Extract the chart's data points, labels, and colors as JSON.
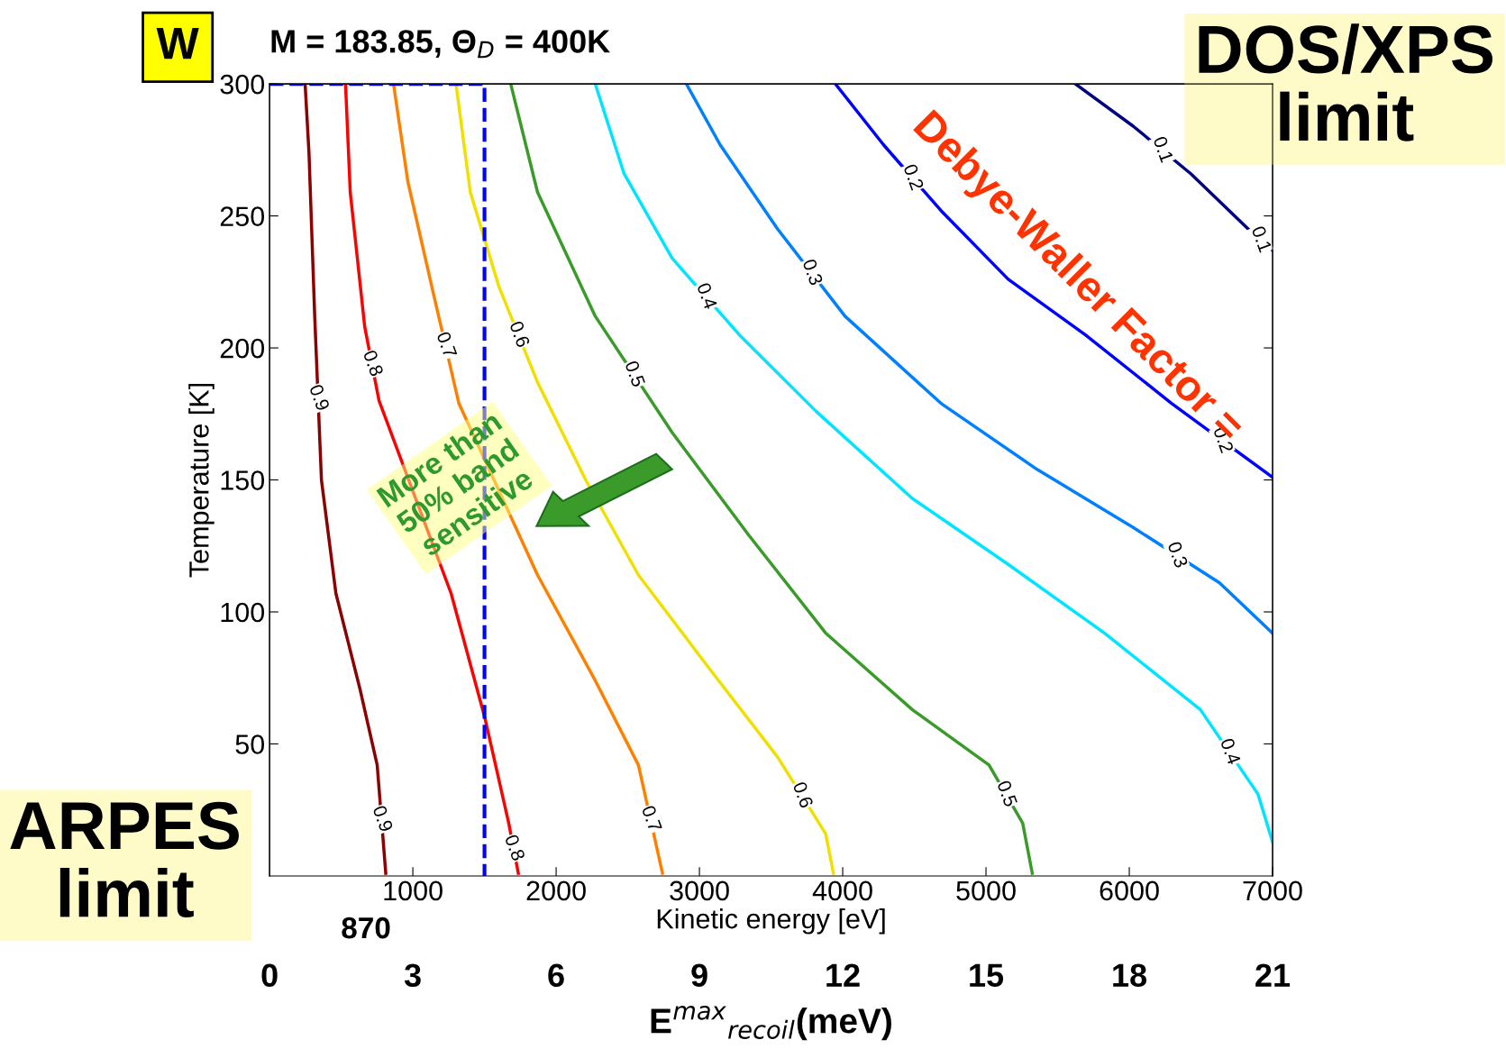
{
  "chart_data": {
    "type": "line",
    "title": "M = 183.85, Θ$_{D}$ = 400K",
    "xlabel": "Kinetic energy [eV]",
    "ylabel": "Temperature [K]",
    "x2label": "E$^{max}$$_{recoil}$(meV)",
    "xlim": [
      0,
      7000
    ],
    "xticks": [
      1000,
      2000,
      3000,
      4000,
      5000,
      6000,
      7000
    ],
    "ylim": [
      0,
      300
    ],
    "yticks": [
      50,
      100,
      150,
      200,
      250,
      300
    ],
    "x2lim": [
      0,
      21
    ],
    "x2ticks": [
      0,
      3,
      6,
      9,
      12,
      15,
      18,
      21
    ],
    "grid": false,
    "legend": false,
    "marker": "none",
    "series": [
      {
        "name": "0.9",
        "color": "#8b0000",
        "x": [
          248,
          275,
          315,
          362,
          463,
          630,
          751,
          811
        ],
        "values": [
          300,
          274,
          212,
          150,
          107,
          71,
          42,
          1
        ]
      },
      {
        "name": "0.8",
        "color": "#ff0000",
        "x": [
          530,
          563,
          664,
          764,
          1267,
          1502,
          1669,
          1736
        ],
        "values": [
          300,
          259,
          208,
          180,
          107,
          60,
          20,
          1
        ]
      },
      {
        "name": "0.7",
        "color": "#ff8000",
        "x": [
          865,
          965,
          1133,
          1321,
          1870,
          2273,
          2574,
          2742
        ],
        "values": [
          300,
          263,
          223,
          179,
          114,
          74,
          42,
          1
        ]
      },
      {
        "name": "0.6",
        "color": "#f0e000",
        "x": [
          1301,
          1401,
          1602,
          1870,
          2206,
          2574,
          3077,
          3546,
          3881,
          3935
        ],
        "values": [
          300,
          259,
          223,
          187,
          150,
          114,
          78,
          45,
          16,
          1
        ]
      },
      {
        "name": "0.5",
        "color": "#3a9a2a",
        "x": [
          1683,
          1870,
          2273,
          2809,
          3345,
          3881,
          4485,
          5021,
          5256,
          5323
        ],
        "values": [
          300,
          259,
          212,
          168,
          129,
          92,
          63,
          42,
          20,
          1
        ]
      },
      {
        "name": "0.4",
        "color": "#00e5ff",
        "x": [
          2273,
          2474,
          2809,
          3278,
          3814,
          4485,
          5155,
          5826,
          6496,
          6898,
          6999
        ],
        "values": [
          300,
          266,
          234,
          205,
          176,
          143,
          118,
          92,
          63,
          31,
          13
        ]
      },
      {
        "name": "0.3",
        "color": "#0080ff",
        "x": [
          2909,
          3144,
          3546,
          4016,
          4686,
          5356,
          6027,
          6630,
          6999
        ],
        "values": [
          300,
          277,
          245,
          212,
          179,
          154,
          132,
          111,
          92
        ]
      },
      {
        "name": "0.2",
        "color": "#0000ff",
        "x": [
          3949,
          4284,
          4686,
          5155,
          5692,
          6295,
          6999
        ],
        "values": [
          300,
          277,
          252,
          226,
          205,
          179,
          151
        ]
      },
      {
        "name": "0.1",
        "color": "#000080",
        "x": [
          5624,
          6027,
          6429,
          6831,
          6999
        ],
        "values": [
          300,
          284,
          266,
          245,
          237
        ]
      },
      {
        "color": "#0000ff",
        "line_style": "dashed",
        "x": [
          0,
          1500,
          1500
        ],
        "values": [
          300,
          300,
          0
        ]
      }
    ],
    "annotations": [
      "W",
      "DOS/XPS\nlimit",
      "ARPES\nlimit",
      "Debye-Waller Factor =",
      "More than\n50% band\nsensitive",
      "870"
    ]
  }
}
